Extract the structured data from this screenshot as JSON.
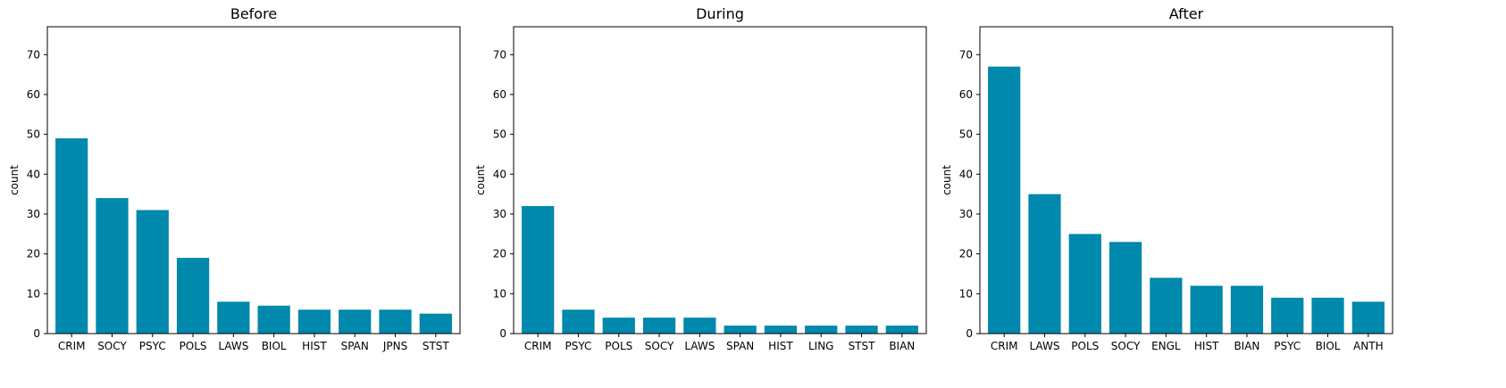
{
  "chart_data": [
    {
      "type": "bar",
      "title": "Before",
      "xlabel": "",
      "ylabel": "count",
      "ylim": [
        0,
        77
      ],
      "yticks": [
        0,
        10,
        20,
        30,
        40,
        50,
        60,
        70
      ],
      "categories": [
        "CRIM",
        "SOCY",
        "PSYC",
        "POLS",
        "LAWS",
        "BIOL",
        "HIST",
        "SPAN",
        "JPNS",
        "STST"
      ],
      "values": [
        49,
        34,
        31,
        19,
        8,
        7,
        6,
        6,
        6,
        5
      ],
      "color": "#0088AD",
      "grid": false
    },
    {
      "type": "bar",
      "title": "During",
      "xlabel": "",
      "ylabel": "count",
      "ylim": [
        0,
        77
      ],
      "yticks": [
        0,
        10,
        20,
        30,
        40,
        50,
        60,
        70
      ],
      "categories": [
        "CRIM",
        "PSYC",
        "POLS",
        "SOCY",
        "LAWS",
        "SPAN",
        "HIST",
        "LING",
        "STST",
        "BIAN"
      ],
      "values": [
        32,
        6,
        4,
        4,
        4,
        2,
        2,
        2,
        2,
        2
      ],
      "color": "#0088AD",
      "grid": false
    },
    {
      "type": "bar",
      "title": "After",
      "xlabel": "",
      "ylabel": "count",
      "ylim": [
        0,
        77
      ],
      "yticks": [
        0,
        10,
        20,
        30,
        40,
        50,
        60,
        70
      ],
      "categories": [
        "CRIM",
        "LAWS",
        "POLS",
        "SOCY",
        "ENGL",
        "HIST",
        "BIAN",
        "PSYC",
        "BIOL",
        "ANTH"
      ],
      "values": [
        67,
        35,
        25,
        23,
        14,
        12,
        12,
        9,
        9,
        8
      ],
      "color": "#0088AD",
      "grid": false
    }
  ]
}
